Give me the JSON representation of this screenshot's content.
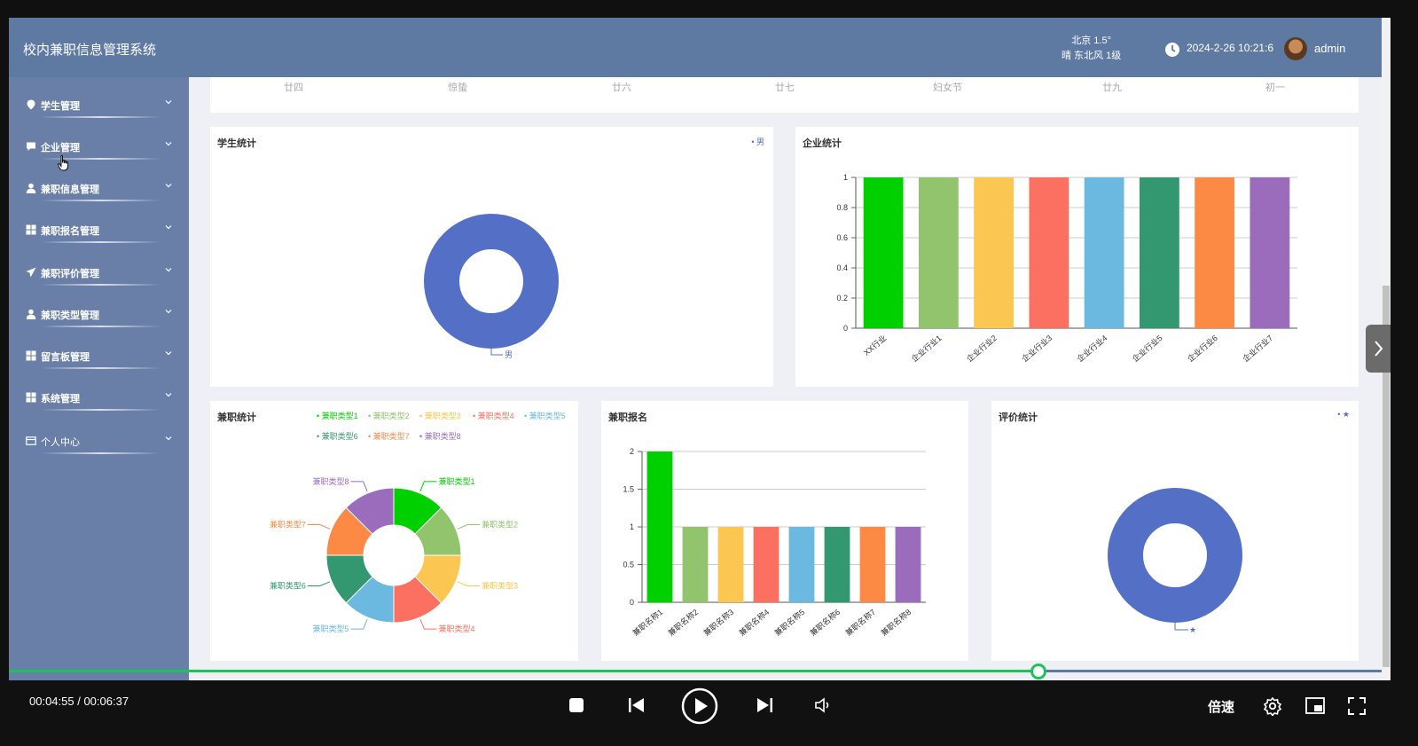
{
  "header": {
    "title": "校内兼职信息管理系统",
    "weather_city_temp": "北京  1.5°",
    "weather_desc": "晴  东北风  1级",
    "datetime": "2024-2-26 10:21:6",
    "username": "admin"
  },
  "sidebar": {
    "items": [
      {
        "label": "学生管理",
        "icon": "location-pin-icon"
      },
      {
        "label": "企业管理",
        "icon": "chat-bubble-icon"
      },
      {
        "label": "兼职信息管理",
        "icon": "user-icon"
      },
      {
        "label": "兼职报名管理",
        "icon": "grid-icon"
      },
      {
        "label": "兼职评价管理",
        "icon": "paper-plane-icon"
      },
      {
        "label": "兼职类型管理",
        "icon": "user-icon"
      },
      {
        "label": "留言板管理",
        "icon": "grid-icon"
      },
      {
        "label": "系统管理",
        "icon": "grid-icon"
      },
      {
        "label": "个人中心",
        "icon": "wallet-icon"
      }
    ]
  },
  "calendar": {
    "days": [
      "廿四",
      "惊蛰",
      "廿六",
      "廿七",
      "妇女节",
      "廿九",
      "初一"
    ]
  },
  "colors": {
    "header": "#5f7aa2",
    "sidebar": "#6a7fa8",
    "palette": [
      "#00d000",
      "#91c46c",
      "#fcc652",
      "#fb7060",
      "#6bb8e0",
      "#339870",
      "#fc8a44",
      "#9b6cbc"
    ],
    "pie_main": "#5470c6",
    "progress": "#1ec25a"
  },
  "student_stats": {
    "title": "学生统计",
    "chart_data": {
      "type": "pie",
      "categories": [
        "男"
      ],
      "values": [
        1
      ],
      "legend": "top-right"
    }
  },
  "enterprise_stats": {
    "title": "企业统计",
    "chart_data": {
      "type": "bar",
      "categories": [
        "XX行业",
        "企业行业1",
        "企业行业2",
        "企业行业3",
        "企业行业4",
        "企业行业5",
        "企业行业6",
        "企业行业7"
      ],
      "values": [
        1,
        1,
        1,
        1,
        1,
        1,
        1,
        1
      ],
      "ylim": [
        0,
        1
      ],
      "yticks": [
        "0",
        "0.2",
        "0.4",
        "0.6",
        "0.8",
        "1"
      ]
    }
  },
  "parttime_stats": {
    "title": "兼职统计",
    "chart_data": {
      "type": "pie",
      "categories": [
        "兼职类型1",
        "兼职类型2",
        "兼职类型3",
        "兼职类型4",
        "兼职类型5",
        "兼职类型6",
        "兼职类型7",
        "兼职类型8"
      ],
      "values": [
        1,
        1,
        1,
        1,
        1,
        1,
        1,
        1
      ],
      "legend": "top"
    }
  },
  "registration_stats": {
    "title": "兼职报名",
    "chart_data": {
      "type": "bar",
      "categories": [
        "兼职名称1",
        "兼职名称2",
        "兼职名称3",
        "兼职名称4",
        "兼职名称5",
        "兼职名称6",
        "兼职名称7",
        "兼职名称8"
      ],
      "values": [
        2,
        1,
        1,
        1,
        1,
        1,
        1,
        1
      ],
      "ylim": [
        0,
        2
      ],
      "yticks": [
        "0",
        "0.5",
        "1",
        "1.5",
        "2"
      ]
    }
  },
  "review_stats": {
    "title": "评价统计",
    "chart_data": {
      "type": "pie",
      "categories": [
        "★"
      ],
      "values": [
        1
      ],
      "legend": "top-right"
    }
  },
  "player": {
    "time": "00:04:55 / 00:06:37",
    "progress": 0.75,
    "speed_label": "倍速"
  }
}
